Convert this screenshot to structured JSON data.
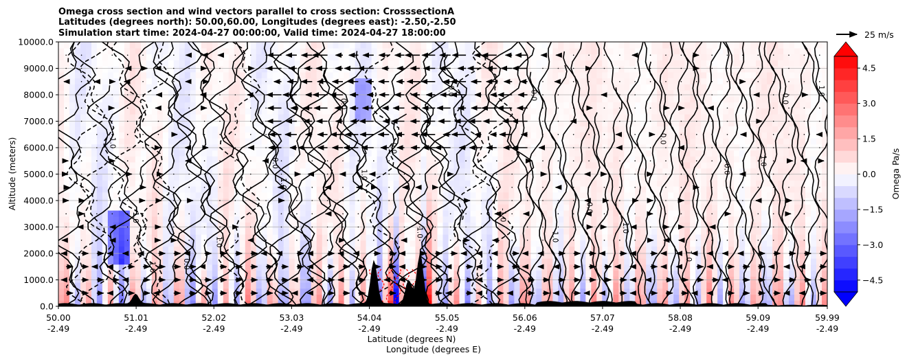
{
  "chart_data": {
    "type": "cross-section-contour",
    "title_lines": [
      "Omega cross section and wind vectors parallel to cross section: CrosssectionA",
      "Latitudes (degrees north): 50.00,60.00, Longitudes (degrees east): -2.50,-2.50",
      "Simulation start time: 2024-04-27 00:00:00, Valid time: 2024-04-27 18:00:00"
    ],
    "ylabel": "Altitude (meters)",
    "xlabel_lines": [
      "Latitude (degrees N)",
      "Longitude (degrees E)"
    ],
    "y_ticks": [
      0,
      1000,
      2000,
      3000,
      4000,
      5000,
      6000,
      7000,
      8000,
      9000,
      10000
    ],
    "y_tick_labels": [
      "0.0",
      "1000.0",
      "2000.0",
      "3000.0",
      "4000.0",
      "5000.0",
      "6000.0",
      "7000.0",
      "8000.0",
      "9000.0",
      "10000.0"
    ],
    "ylim": [
      0,
      10000
    ],
    "x_ticks_lat": [
      50.0,
      51.01,
      52.02,
      53.03,
      54.04,
      55.05,
      56.06,
      57.07,
      58.08,
      59.09,
      59.99
    ],
    "x_tick_labels_lat": [
      "50.00",
      "51.01",
      "52.02",
      "53.03",
      "54.04",
      "55.05",
      "56.06",
      "57.07",
      "58.08",
      "59.09",
      "59.99"
    ],
    "x_tick_labels_lon": [
      "-2.49",
      "-2.49",
      "-2.49",
      "-2.49",
      "-2.49",
      "-2.49",
      "-2.49",
      "-2.49",
      "-2.49",
      "-2.49",
      "-2.49"
    ],
    "xlim": [
      50.0,
      59.99
    ],
    "grid": "horizontal",
    "vector_key_label": "25 m/s",
    "colorbar": {
      "label": "Omega Pa/s",
      "min": -5.0,
      "max": 5.0,
      "ticks": [
        4.5,
        3.0,
        1.5,
        0.0,
        -1.5,
        -3.0,
        -4.5
      ],
      "tick_labels": [
        "4.5",
        "3.0",
        "1.5",
        "0.0",
        "−1.5",
        "−3.0",
        "−4.5"
      ],
      "cmap": "bwr",
      "extend": "both"
    },
    "contour_level_labels": [
      "0.0",
      "1.0",
      "-1.0",
      "2.0",
      "-2.0"
    ],
    "terrain_peaks": [
      {
        "lat": 54.1,
        "height_m": 1700
      },
      {
        "lat": 54.7,
        "height_m": 1900
      },
      {
        "lat": 54.55,
        "height_m": 900
      },
      {
        "lat": 51.0,
        "height_m": 400
      }
    ]
  },
  "colors": {
    "positive": "#ff0000",
    "negative": "#0000ff",
    "neutral": "#ffffff",
    "grid": "#b0b0b0",
    "terrain": "#000000"
  }
}
